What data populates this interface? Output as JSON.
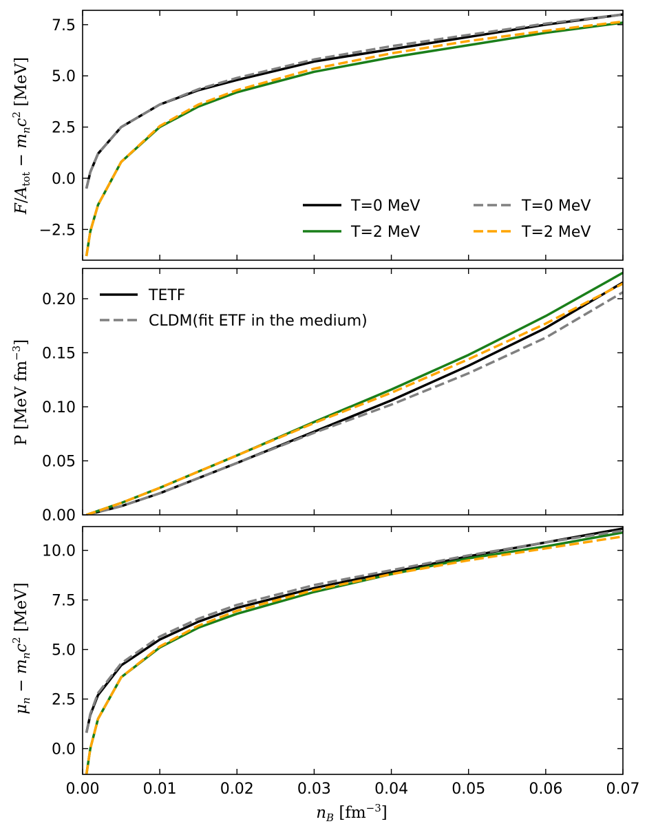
{
  "colors": {
    "t0_tetf": "#000000",
    "t2_tetf": "#1a7f1a",
    "t0_cldm": "#808080",
    "t2_cldm": "#ffa500"
  },
  "chart_data": [
    {
      "type": "line",
      "panel": "top",
      "ylabel": "F/A_tot − m_n c^2 [MeV]",
      "xlim": [
        0.0,
        0.07
      ],
      "ylim": [
        -4.0,
        8.2
      ],
      "yticks": [
        "−2.5",
        "0.0",
        "2.5",
        "5.0",
        "7.5"
      ],
      "legend": {
        "placement": "lower-right",
        "columns": 2
      },
      "series": [
        {
          "name": "T=0 MeV",
          "model": "TETF",
          "color": "#000000",
          "dash": "solid",
          "x": [
            0.0005,
            0.001,
            0.002,
            0.005,
            0.01,
            0.015,
            0.02,
            0.03,
            0.04,
            0.05,
            0.06,
            0.07
          ],
          "y": [
            -0.5,
            0.3,
            1.2,
            2.5,
            3.6,
            4.3,
            4.8,
            5.7,
            6.3,
            6.9,
            7.5,
            8.0
          ]
        },
        {
          "name": "T=2 MeV",
          "model": "TETF",
          "color": "#1a7f1a",
          "dash": "solid",
          "x": [
            0.0005,
            0.001,
            0.002,
            0.005,
            0.01,
            0.015,
            0.02,
            0.03,
            0.04,
            0.05,
            0.06,
            0.07
          ],
          "y": [
            -3.8,
            -2.6,
            -1.3,
            0.8,
            2.5,
            3.5,
            4.2,
            5.2,
            5.9,
            6.5,
            7.1,
            7.6
          ]
        },
        {
          "name": "T=0 MeV",
          "model": "CLDM",
          "color": "#808080",
          "dash": "dashed",
          "x": [
            0.0005,
            0.001,
            0.002,
            0.005,
            0.01,
            0.015,
            0.02,
            0.03,
            0.04,
            0.05,
            0.06,
            0.07
          ],
          "y": [
            -0.5,
            0.3,
            1.2,
            2.5,
            3.6,
            4.35,
            4.9,
            5.8,
            6.45,
            7.0,
            7.55,
            8.0
          ]
        },
        {
          "name": "T=2 MeV",
          "model": "CLDM",
          "color": "#ffa500",
          "dash": "dashed",
          "x": [
            0.0005,
            0.001,
            0.002,
            0.005,
            0.01,
            0.015,
            0.02,
            0.03,
            0.04,
            0.05,
            0.06,
            0.07
          ],
          "y": [
            -3.8,
            -2.6,
            -1.3,
            0.8,
            2.55,
            3.6,
            4.3,
            5.35,
            6.1,
            6.7,
            7.2,
            7.65
          ]
        }
      ]
    },
    {
      "type": "line",
      "panel": "middle",
      "ylabel": "P [MeV fm^-3]",
      "xlim": [
        0.0,
        0.07
      ],
      "ylim": [
        0.0,
        0.228
      ],
      "yticks": [
        "0.00",
        "0.05",
        "0.10",
        "0.15",
        "0.20"
      ],
      "legend": {
        "placement": "top-left",
        "columns": 1
      },
      "series": [
        {
          "name": "TETF",
          "color": "#000000",
          "dash": "solid",
          "x": [
            0.0005,
            0.005,
            0.01,
            0.02,
            0.03,
            0.04,
            0.05,
            0.06,
            0.07
          ],
          "y": [
            0.0,
            0.008,
            0.02,
            0.048,
            0.077,
            0.106,
            0.138,
            0.173,
            0.215
          ]
        },
        {
          "name": "T=2 MeV (TETF)",
          "color": "#1a7f1a",
          "dash": "solid",
          "x": [
            0.0005,
            0.005,
            0.01,
            0.02,
            0.03,
            0.04,
            0.05,
            0.06,
            0.07
          ],
          "y": [
            0.0,
            0.011,
            0.025,
            0.055,
            0.086,
            0.116,
            0.148,
            0.184,
            0.224
          ]
        },
        {
          "name": "CLDM(fit ETF in the medium)",
          "color": "#808080",
          "dash": "dashed",
          "x": [
            0.0005,
            0.005,
            0.01,
            0.02,
            0.03,
            0.04,
            0.05,
            0.06,
            0.07
          ],
          "y": [
            0.0,
            0.008,
            0.02,
            0.048,
            0.076,
            0.102,
            0.131,
            0.164,
            0.206
          ]
        },
        {
          "name": "T=2 MeV (CLDM)",
          "color": "#ffa500",
          "dash": "dashed",
          "x": [
            0.0005,
            0.005,
            0.01,
            0.02,
            0.03,
            0.04,
            0.05,
            0.06,
            0.07
          ],
          "y": [
            0.0,
            0.011,
            0.025,
            0.055,
            0.085,
            0.113,
            0.144,
            0.177,
            0.214
          ]
        }
      ]
    },
    {
      "type": "line",
      "panel": "bottom",
      "ylabel": "μ_n − m_n c^2 [MeV]",
      "xlabel": "n_B [fm^-3]",
      "xlim": [
        0.0,
        0.07
      ],
      "xticks": [
        "0.00",
        "0.01",
        "0.02",
        "0.03",
        "0.04",
        "0.05",
        "0.06",
        "0.07"
      ],
      "ylim": [
        -1.3,
        11.2
      ],
      "yticks": [
        "0.0",
        "2.5",
        "5.0",
        "7.5",
        "10.0"
      ],
      "series": [
        {
          "name": "T=0 MeV TETF",
          "color": "#000000",
          "dash": "solid",
          "x": [
            0.0005,
            0.001,
            0.002,
            0.005,
            0.01,
            0.015,
            0.02,
            0.03,
            0.04,
            0.05,
            0.06,
            0.07
          ],
          "y": [
            0.8,
            1.7,
            2.7,
            4.2,
            5.5,
            6.4,
            7.1,
            8.1,
            8.9,
            9.7,
            10.4,
            11.1
          ]
        },
        {
          "name": "T=2 MeV TETF",
          "color": "#1a7f1a",
          "dash": "solid",
          "x": [
            0.0005,
            0.001,
            0.002,
            0.005,
            0.01,
            0.015,
            0.02,
            0.03,
            0.04,
            0.05,
            0.06,
            0.07
          ],
          "y": [
            -1.3,
            0.0,
            1.5,
            3.6,
            5.1,
            6.1,
            6.8,
            7.9,
            8.8,
            9.6,
            10.2,
            10.9
          ]
        },
        {
          "name": "T=0 MeV CLDM",
          "color": "#808080",
          "dash": "dashed",
          "x": [
            0.0005,
            0.001,
            0.002,
            0.005,
            0.01,
            0.015,
            0.02,
            0.03,
            0.04,
            0.05,
            0.06,
            0.07
          ],
          "y": [
            0.8,
            1.75,
            2.8,
            4.3,
            5.65,
            6.55,
            7.25,
            8.25,
            9.0,
            9.75,
            10.4,
            11.0
          ]
        },
        {
          "name": "T=2 MeV CLDM",
          "color": "#ffa500",
          "dash": "dashed",
          "x": [
            0.0005,
            0.001,
            0.002,
            0.005,
            0.01,
            0.015,
            0.02,
            0.03,
            0.04,
            0.05,
            0.06,
            0.07
          ],
          "y": [
            -1.3,
            0.0,
            1.5,
            3.6,
            5.15,
            6.2,
            6.95,
            8.0,
            8.8,
            9.5,
            10.1,
            10.7
          ]
        }
      ]
    }
  ]
}
